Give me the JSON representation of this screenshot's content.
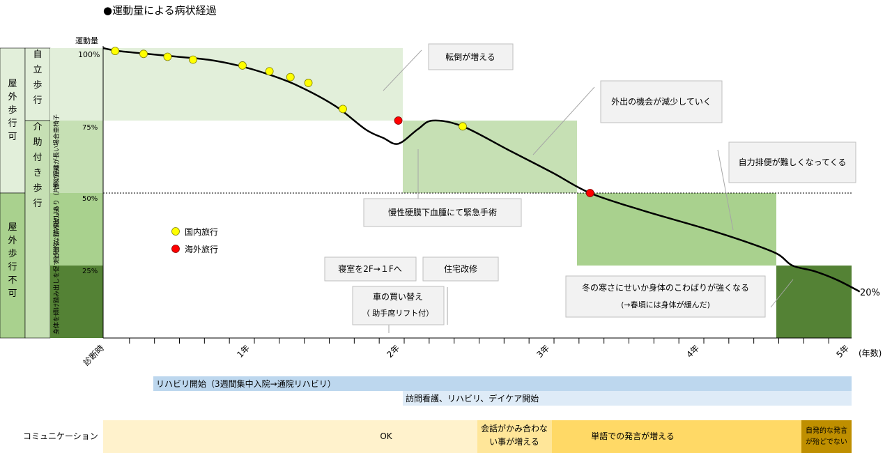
{
  "title": "●運動量による病状経過",
  "left_panel": {
    "outdoor_ok": "屋外歩行可",
    "outdoor_ng": "屋外歩行不可",
    "independent": "自立歩行",
    "assisted": "介助付き歩行",
    "sub75": "歩く距離が長い場合車椅子",
    "sub50": "自発的な踏み出しあり（片側のみ）",
    "sub25": "身体を傾け踏み出しを促すと出る（片側のみ）"
  },
  "legend": {
    "domestic": "国内旅行",
    "overseas": "海外旅行"
  },
  "colors": {
    "zone_light": "#e2efda",
    "zone_mid": "#c6e0b4",
    "zone_mid2": "#a9d18e",
    "zone_dark": "#548235",
    "domestic": "#ffff00",
    "overseas": "#ff0000",
    "rehab_bar": "#bdd7ee",
    "visit_bar": "#deebf7",
    "comm_ok": "#fff2cc",
    "comm_mid": "#ffe699",
    "comm_more": "#ffd966",
    "comm_end": "#bf8f00"
  },
  "annotations": {
    "falls": "転倒が増える",
    "outings": "外出の機会が減少していく",
    "toilet": "自力排便が難しくなってくる",
    "surgery": "慢性硬膜下血腫にて緊急手術",
    "bedroom": "寝室を2F→１Fへ",
    "reform": "住宅改修",
    "car1": "車の買い替え",
    "car2": "（ 助手席リフト付）",
    "cold1": "冬の寒さにせいか身体のこわばりが強くなる",
    "cold2": "(→春頃には身体が緩んだ)"
  },
  "timeline": {
    "rehab": "リハビリ開始（3週間集中入院→通院リハビリ）",
    "visit": "訪問看護、リハビリ、デイケア開始"
  },
  "communication": {
    "label": "コミュニケーション",
    "ok": "OK",
    "mismatch1": "会話がかみ合わな",
    "mismatch2": "い事が増える",
    "words": "単語での発言が増える",
    "end1": "自発的な発言",
    "end2": "が殆どでない"
  },
  "chart_data": {
    "type": "line",
    "ylabel": "運動量",
    "xunit": "(年数)",
    "yticks": [
      "100%",
      "75%",
      "50%",
      "25%"
    ],
    "xticks": [
      "診断時",
      "1年",
      "2年",
      "3年",
      "4年",
      "5年"
    ],
    "end_label": "20%",
    "ylim": [
      0,
      100
    ],
    "xlim": [
      0,
      5
    ],
    "curve": [
      [
        0.0,
        100
      ],
      [
        0.1,
        99
      ],
      [
        0.3,
        98
      ],
      [
        0.5,
        97
      ],
      [
        0.7,
        96
      ],
      [
        0.9,
        94
      ],
      [
        1.1,
        91
      ],
      [
        1.3,
        87
      ],
      [
        1.55,
        80
      ],
      [
        1.75,
        72
      ],
      [
        1.87,
        69
      ],
      [
        1.97,
        67
      ],
      [
        2.1,
        72
      ],
      [
        2.2,
        75
      ],
      [
        2.4,
        73
      ],
      [
        2.7,
        65
      ],
      [
        3.0,
        57
      ],
      [
        3.25,
        50
      ],
      [
        3.6,
        44
      ],
      [
        4.0,
        38
      ],
      [
        4.3,
        33
      ],
      [
        4.5,
        29
      ],
      [
        4.6,
        25
      ],
      [
        4.75,
        23
      ],
      [
        4.9,
        20
      ],
      [
        5.05,
        16
      ]
    ],
    "domestic_trips": [
      [
        0.08,
        99
      ],
      [
        0.27,
        98
      ],
      [
        0.43,
        97
      ],
      [
        0.6,
        96
      ],
      [
        0.93,
        94
      ],
      [
        1.11,
        92
      ],
      [
        1.25,
        90
      ],
      [
        1.37,
        88
      ],
      [
        1.6,
        79
      ],
      [
        2.4,
        73
      ]
    ],
    "overseas_trips": [
      [
        1.97,
        75
      ],
      [
        3.25,
        50
      ]
    ]
  }
}
